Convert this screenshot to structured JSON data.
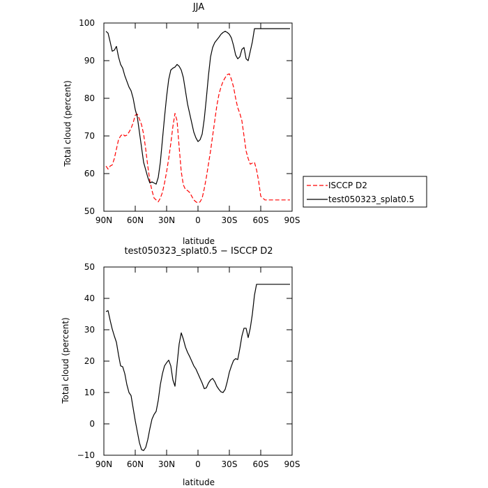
{
  "chart_data": [
    {
      "type": "line",
      "title": "JJA",
      "xlabel": "latitude",
      "ylabel": "Total cloud (percent)",
      "x_tick_labels": [
        "90N",
        "60N",
        "30N",
        "0",
        "30S",
        "60S",
        "90S"
      ],
      "x_tick_values": [
        90,
        60,
        30,
        0,
        -30,
        -60,
        -90
      ],
      "xlim": [
        90,
        -90
      ],
      "ylim": [
        50,
        100
      ],
      "y_ticks": [
        50,
        60,
        70,
        80,
        90,
        100
      ],
      "grid": false,
      "legend_position": "right",
      "series": [
        {
          "name": "ISCCP D2",
          "color": "#ff0000",
          "style": "dashed",
          "x": [
            88,
            86,
            84,
            82,
            80,
            78,
            76,
            74,
            72,
            70,
            68,
            66,
            64,
            62,
            60,
            58,
            56,
            54,
            52,
            50,
            48,
            46,
            44,
            42,
            40,
            38,
            36,
            34,
            32,
            30,
            28,
            26,
            24,
            22,
            20,
            18,
            16,
            14,
            12,
            10,
            8,
            6,
            4,
            2,
            0,
            -2,
            -4,
            -6,
            -8,
            -10,
            -12,
            -14,
            -16,
            -18,
            -20,
            -22,
            -24,
            -26,
            -28,
            -30,
            -32,
            -34,
            -36,
            -38,
            -40,
            -42,
            -44,
            -46,
            -48,
            -50,
            -52,
            -54,
            -56,
            -58,
            -60,
            -62,
            -64,
            -66,
            -68,
            -70,
            -72,
            -74,
            -76,
            -78,
            -80,
            -82,
            -84,
            -86,
            -88
          ],
          "values": [
            62.0,
            61.2,
            62.0,
            62.3,
            64.0,
            66.5,
            69.0,
            70.0,
            70.5,
            70.0,
            70.2,
            71.0,
            72.0,
            73.5,
            75.5,
            75.8,
            74.5,
            73.0,
            70.5,
            66.5,
            62.0,
            58.0,
            55.5,
            53.5,
            53.0,
            52.5,
            53.5,
            55.0,
            57.5,
            60.5,
            64.0,
            68.0,
            72.5,
            76.0,
            74.0,
            67.0,
            60.5,
            57.0,
            55.8,
            55.5,
            55.0,
            54.0,
            53.0,
            52.5,
            52.2,
            52.5,
            53.5,
            56.0,
            59.0,
            62.5,
            66.0,
            70.0,
            74.0,
            78.0,
            81.0,
            83.0,
            84.5,
            85.5,
            86.3,
            86.5,
            85.0,
            83.0,
            80.0,
            77.5,
            76.0,
            74.0,
            70.0,
            66.0,
            64.0,
            62.5,
            62.8,
            63.0,
            61.0,
            58.0,
            54.0,
            53.5,
            53.0,
            53.0,
            53.0,
            53.0,
            53.0,
            53.0,
            53.0,
            53.0,
            53.0,
            53.0,
            53.0,
            53.0,
            53.0
          ]
        },
        {
          "name": "test050323_splat0.5",
          "color": "#000000",
          "style": "solid",
          "x": [
            88,
            86,
            84,
            82,
            80,
            78,
            76,
            74,
            72,
            70,
            68,
            66,
            64,
            62,
            60,
            58,
            56,
            54,
            52,
            50,
            48,
            46,
            44,
            42,
            40,
            38,
            36,
            34,
            32,
            30,
            28,
            26,
            24,
            22,
            20,
            18,
            16,
            14,
            12,
            10,
            8,
            6,
            4,
            2,
            0,
            -2,
            -4,
            -6,
            -8,
            -10,
            -12,
            -14,
            -16,
            -18,
            -20,
            -22,
            -24,
            -26,
            -28,
            -30,
            -32,
            -34,
            -36,
            -38,
            -40,
            -42,
            -44,
            -46,
            -48,
            -50,
            -52,
            -54,
            -56,
            -58,
            -60,
            -62,
            -64,
            -66,
            -68,
            -70,
            -72,
            -74,
            -76,
            -78,
            -80,
            -82,
            -84,
            -86,
            -88
          ],
          "values": [
            97.8,
            97.3,
            95.0,
            92.5,
            92.8,
            93.8,
            91.0,
            89.0,
            88.0,
            86.0,
            84.5,
            83.0,
            82.0,
            80.0,
            77.0,
            75.0,
            71.0,
            67.0,
            63.0,
            61.0,
            59.0,
            57.5,
            57.8,
            57.5,
            57.2,
            59.0,
            63.0,
            69.0,
            75.0,
            80.5,
            85.0,
            87.5,
            88.0,
            88.3,
            89.0,
            88.5,
            87.5,
            85.5,
            82.0,
            78.5,
            76.0,
            73.5,
            71.0,
            69.5,
            68.5,
            69.0,
            70.5,
            74.5,
            80.0,
            86.0,
            91.0,
            93.5,
            94.8,
            95.5,
            96.2,
            97.0,
            97.5,
            97.8,
            97.5,
            97.0,
            96.0,
            94.0,
            91.5,
            90.5,
            91.0,
            93.0,
            93.5,
            90.5,
            90.0,
            92.5,
            95.0,
            98.5,
            98.5,
            98.5,
            98.5,
            98.5,
            98.5,
            98.5,
            98.5,
            98.5,
            98.5,
            98.5,
            98.5,
            98.5,
            98.5,
            98.5,
            98.5,
            98.5,
            98.5
          ]
        }
      ]
    },
    {
      "type": "line",
      "title": "test050323_splat0.5 − ISCCP D2",
      "xlabel": "latitude",
      "ylabel": "Total cloud (percent)",
      "x_tick_labels": [
        "90N",
        "60N",
        "30N",
        "0",
        "30S",
        "60S",
        "90S"
      ],
      "x_tick_values": [
        90,
        60,
        30,
        0,
        -30,
        -60,
        -90
      ],
      "xlim": [
        90,
        -90
      ],
      "ylim": [
        -10,
        50
      ],
      "y_ticks": [
        -10,
        0,
        10,
        20,
        30,
        40,
        50
      ],
      "grid": false,
      "series": [
        {
          "color": "#000000",
          "style": "solid",
          "x": [
            88,
            86,
            84,
            82,
            80,
            78,
            76,
            74,
            72,
            70,
            68,
            66,
            64,
            62,
            60,
            58,
            56,
            54,
            52,
            50,
            48,
            46,
            44,
            42,
            40,
            38,
            36,
            34,
            32,
            30,
            28,
            26,
            24,
            22,
            20,
            18,
            16,
            14,
            12,
            10,
            8,
            6,
            4,
            2,
            0,
            -2,
            -4,
            -6,
            -8,
            -10,
            -12,
            -14,
            -16,
            -18,
            -20,
            -22,
            -24,
            -26,
            -28,
            -30,
            -32,
            -34,
            -36,
            -38,
            -40,
            -42,
            -44,
            -46,
            -48,
            -50,
            -52,
            -54,
            -56,
            -58,
            -60,
            -62,
            -64,
            -66,
            -68,
            -70,
            -72,
            -74,
            -76,
            -78,
            -80,
            -82,
            -84,
            -86,
            -88
          ],
          "values": [
            35.8,
            36.1,
            33.0,
            30.2,
            28.0,
            26.0,
            22.0,
            18.5,
            18.2,
            16.0,
            12.5,
            10.0,
            9.0,
            5.0,
            1.0,
            -2.5,
            -6.0,
            -8.2,
            -8.5,
            -7.5,
            -5.0,
            -1.5,
            1.5,
            3.0,
            4.0,
            7.5,
            12.5,
            16.0,
            18.5,
            19.5,
            20.3,
            18.5,
            14.0,
            12.0,
            19.0,
            25.5,
            29.0,
            27.0,
            24.5,
            22.8,
            21.5,
            20.0,
            18.5,
            17.5,
            16.0,
            14.5,
            13.0,
            11.2,
            11.5,
            13.0,
            14.0,
            14.5,
            13.5,
            12.0,
            11.0,
            10.2,
            10.0,
            11.0,
            13.5,
            16.5,
            18.5,
            20.2,
            20.8,
            20.5,
            24.0,
            28.0,
            30.5,
            30.5,
            27.5,
            30.5,
            35.0,
            41.0,
            44.5,
            44.5,
            44.5,
            44.5,
            44.5,
            44.5,
            44.5,
            44.5,
            44.5,
            44.5,
            44.5,
            44.5,
            44.5,
            44.5,
            44.5,
            44.5,
            44.5
          ]
        }
      ]
    }
  ]
}
